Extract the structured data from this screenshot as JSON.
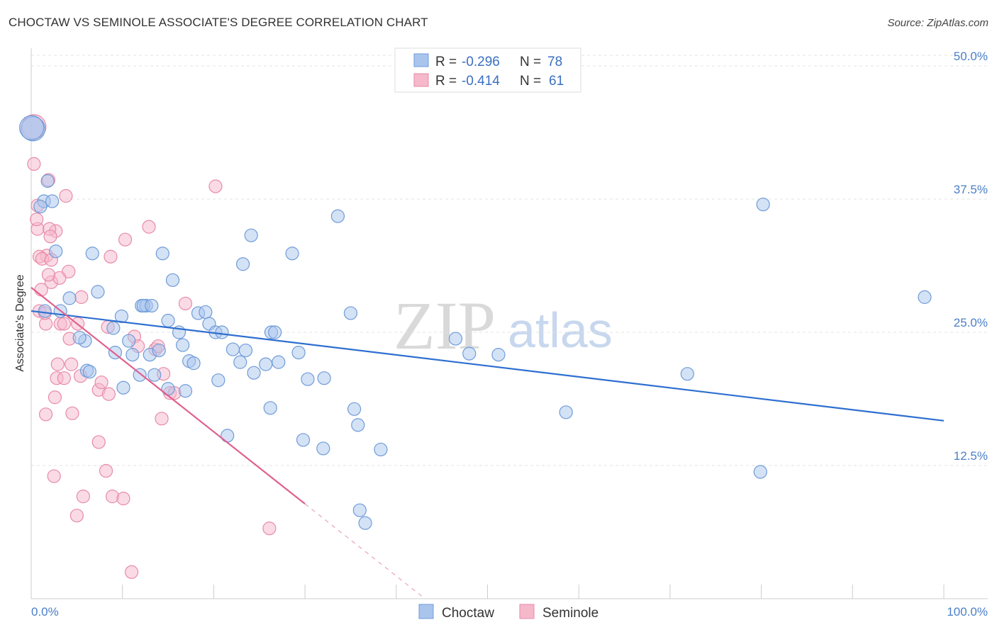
{
  "header": {
    "title": "CHOCTAW VS SEMINOLE ASSOCIATE'S DEGREE CORRELATION CHART",
    "source": "Source: ZipAtlas.com"
  },
  "watermark": {
    "zip": "ZIP",
    "atlas": "atlas"
  },
  "chart_data": {
    "type": "scatter",
    "title": "CHOCTAW VS SEMINOLE ASSOCIATE'S DEGREE CORRELATION CHART",
    "xlabel": "",
    "ylabel": "Associate's Degree",
    "xlim": [
      0,
      100
    ],
    "ylim": [
      0,
      51
    ],
    "grid": true,
    "x_tick_labels": {
      "min": "0.0%",
      "max": "100.0%"
    },
    "y_ticks": [
      {
        "value": 12.5,
        "label": "12.5%"
      },
      {
        "value": 25.0,
        "label": "25.0%"
      },
      {
        "value": 37.5,
        "label": "37.5%"
      },
      {
        "value": 50.0,
        "label": "50.0%"
      }
    ],
    "legend": {
      "placement": "top-center",
      "entries": [
        {
          "r_label": "R =",
          "r_value": "-0.296",
          "n_label": "N =",
          "n_value": "78"
        },
        {
          "r_label": "R =",
          "r_value": "-0.414",
          "n_label": "N =",
          "n_value": "61"
        }
      ]
    },
    "colors": {
      "choctaw_fill": "#a9c5ee",
      "choctaw_stroke": "#6f9bd8",
      "choctaw_line": "#2e6fd0",
      "seminole_fill": "#f6b8cb",
      "seminole_stroke": "#e88aa8",
      "seminole_line": "#e0608f"
    },
    "series": [
      {
        "name": "Choctaw",
        "trend": {
          "x": [
            0,
            100
          ],
          "y": [
            27.0,
            16.7
          ]
        },
        "points": [
          [
            0.2,
            44.1
          ],
          [
            1.4,
            37.3
          ],
          [
            2.3,
            37.3
          ],
          [
            1.0,
            36.8
          ],
          [
            1.8,
            39.2
          ],
          [
            2.7,
            32.6
          ],
          [
            6.7,
            32.4
          ],
          [
            14.4,
            32.4
          ],
          [
            23.2,
            31.4
          ],
          [
            28.6,
            32.4
          ],
          [
            24.1,
            34.1
          ],
          [
            33.6,
            35.9
          ],
          [
            80.2,
            37.0
          ],
          [
            1.5,
            27.0
          ],
          [
            3.2,
            27.0
          ],
          [
            4.2,
            28.2
          ],
          [
            7.3,
            28.8
          ],
          [
            9.0,
            25.4
          ],
          [
            9.9,
            26.5
          ],
          [
            12.1,
            27.5
          ],
          [
            12.6,
            27.5
          ],
          [
            12.3,
            27.5
          ],
          [
            13.2,
            27.5
          ],
          [
            15.0,
            26.1
          ],
          [
            15.5,
            29.9
          ],
          [
            18.3,
            26.8
          ],
          [
            19.1,
            26.9
          ],
          [
            19.5,
            25.8
          ],
          [
            20.2,
            25.0
          ],
          [
            20.9,
            25.0
          ],
          [
            16.2,
            25.0
          ],
          [
            26.3,
            25.0
          ],
          [
            26.7,
            25.0
          ],
          [
            35.0,
            26.8
          ],
          [
            46.5,
            24.4
          ],
          [
            97.9,
            28.3
          ],
          [
            5.9,
            24.2
          ],
          [
            5.3,
            24.5
          ],
          [
            9.2,
            23.1
          ],
          [
            10.7,
            24.2
          ],
          [
            11.1,
            22.9
          ],
          [
            13.0,
            22.9
          ],
          [
            14.0,
            23.3
          ],
          [
            16.6,
            23.8
          ],
          [
            17.3,
            22.3
          ],
          [
            17.8,
            22.1
          ],
          [
            22.1,
            23.4
          ],
          [
            22.9,
            22.2
          ],
          [
            23.5,
            23.3
          ],
          [
            24.4,
            21.2
          ],
          [
            25.7,
            22.0
          ],
          [
            27.1,
            22.2
          ],
          [
            29.3,
            23.1
          ],
          [
            30.3,
            20.6
          ],
          [
            32.1,
            20.7
          ],
          [
            48.0,
            23.0
          ],
          [
            51.2,
            22.9
          ],
          [
            71.9,
            21.1
          ],
          [
            6.1,
            21.4
          ],
          [
            6.4,
            21.3
          ],
          [
            10.1,
            19.8
          ],
          [
            11.9,
            21.0
          ],
          [
            13.5,
            21.0
          ],
          [
            15.0,
            19.7
          ],
          [
            16.9,
            19.5
          ],
          [
            20.5,
            20.5
          ],
          [
            26.2,
            17.9
          ],
          [
            35.4,
            17.8
          ],
          [
            35.8,
            16.3
          ],
          [
            58.6,
            17.5
          ],
          [
            21.5,
            15.3
          ],
          [
            29.8,
            14.9
          ],
          [
            32.0,
            14.1
          ],
          [
            38.3,
            14.0
          ],
          [
            79.9,
            11.9
          ],
          [
            36.0,
            8.3
          ],
          [
            36.6,
            7.1
          ],
          [
            0.05,
            44.2
          ]
        ]
      },
      {
        "name": "Seminole",
        "trend": {
          "x": [
            0,
            30
          ],
          "y": [
            29.2,
            8.9
          ],
          "dashed_x": [
            30,
            43
          ],
          "dashed_y": [
            8.9,
            0.1
          ]
        },
        "points": [
          [
            0.3,
            44.3
          ],
          [
            0.3,
            40.8
          ],
          [
            0.7,
            36.9
          ],
          [
            1.9,
            39.3
          ],
          [
            0.7,
            34.7
          ],
          [
            0.6,
            35.6
          ],
          [
            2.7,
            34.5
          ],
          [
            2.0,
            34.7
          ],
          [
            2.1,
            34.0
          ],
          [
            3.8,
            37.8
          ],
          [
            20.2,
            38.7
          ],
          [
            8.7,
            32.1
          ],
          [
            1.7,
            32.2
          ],
          [
            0.9,
            32.1
          ],
          [
            1.2,
            31.9
          ],
          [
            2.2,
            31.8
          ],
          [
            10.3,
            33.7
          ],
          [
            12.9,
            34.9
          ],
          [
            4.1,
            30.7
          ],
          [
            2.2,
            29.7
          ],
          [
            3.1,
            30.1
          ],
          [
            1.1,
            29.0
          ],
          [
            1.9,
            30.4
          ],
          [
            5.5,
            28.3
          ],
          [
            16.9,
            27.7
          ],
          [
            0.9,
            27.0
          ],
          [
            1.6,
            25.8
          ],
          [
            3.2,
            25.8
          ],
          [
            3.6,
            25.8
          ],
          [
            5.1,
            25.8
          ],
          [
            8.4,
            25.5
          ],
          [
            11.3,
            24.6
          ],
          [
            13.6,
            23.4
          ],
          [
            13.9,
            23.7
          ],
          [
            4.2,
            24.4
          ],
          [
            2.9,
            22.0
          ],
          [
            4.4,
            22.0
          ],
          [
            11.7,
            23.7
          ],
          [
            14.5,
            21.1
          ],
          [
            2.8,
            20.7
          ],
          [
            3.6,
            20.7
          ],
          [
            5.4,
            20.9
          ],
          [
            7.4,
            19.6
          ],
          [
            7.7,
            20.3
          ],
          [
            8.5,
            19.2
          ],
          [
            15.2,
            19.3
          ],
          [
            15.7,
            19.3
          ],
          [
            2.6,
            18.9
          ],
          [
            1.6,
            17.3
          ],
          [
            4.5,
            17.4
          ],
          [
            14.3,
            16.9
          ],
          [
            7.4,
            14.7
          ],
          [
            8.2,
            12.0
          ],
          [
            2.5,
            11.5
          ],
          [
            5.7,
            9.6
          ],
          [
            8.9,
            9.6
          ],
          [
            10.1,
            9.4
          ],
          [
            5.0,
            7.8
          ],
          [
            26.1,
            6.6
          ],
          [
            11.0,
            2.5
          ],
          [
            1.5,
            26.8
          ]
        ]
      }
    ]
  },
  "bottom_legend": {
    "choctaw": "Choctaw",
    "seminole": "Seminole"
  }
}
